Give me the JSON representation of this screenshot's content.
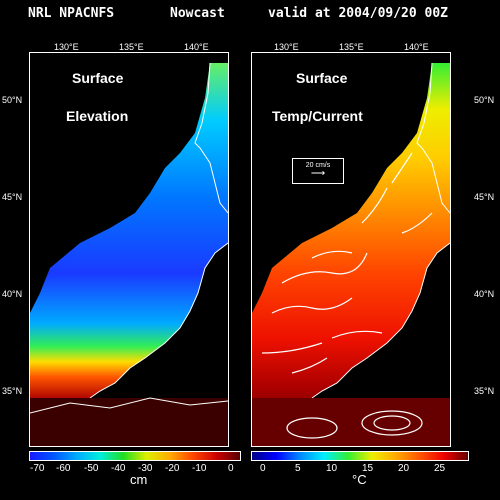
{
  "header": {
    "source": "NRL NPACNFS",
    "product": "Nowcast",
    "valid": "valid at 2004/09/20 00Z"
  },
  "longitude_ticks": [
    "130°E",
    "135°E",
    "140°E"
  ],
  "latitude_ticks": [
    "50°N",
    "45°N",
    "40°N",
    "35°N"
  ],
  "left_panel": {
    "title_line1": "Surface",
    "title_line2": "Elevation",
    "colorbar_labels": [
      "-70",
      "-60",
      "-50",
      "-40",
      "-30",
      "-20",
      "-10",
      "0"
    ],
    "unit": "cm",
    "colors": [
      "#1a1aff",
      "#0055ff",
      "#00aaff",
      "#00eedd",
      "#22dd22",
      "#ddee00",
      "#ffaa00",
      "#ff4400",
      "#cc0000",
      "#550000"
    ]
  },
  "right_panel": {
    "title_line1": "Surface",
    "title_line2": "Temp/Current",
    "colorbar_labels": [
      "0",
      "5",
      "10",
      "15",
      "20",
      "25"
    ],
    "unit": "°C",
    "vector_legend": "20 cm/s",
    "colors": [
      "#000088",
      "#0000ff",
      "#0088ff",
      "#00eeff",
      "#33ee33",
      "#eeee00",
      "#ffaa00",
      "#ff5500",
      "#ee0000",
      "#660000"
    ]
  }
}
